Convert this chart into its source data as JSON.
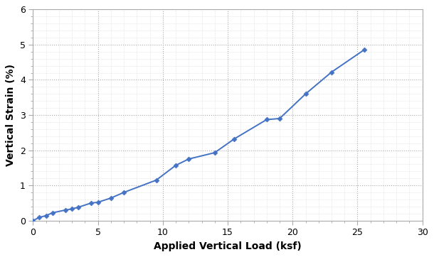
{
  "x": [
    0,
    0.5,
    1.0,
    1.5,
    2.5,
    3.0,
    3.5,
    4.5,
    5.0,
    6.0,
    7.0,
    9.5,
    11.0,
    12.0,
    14.0,
    15.5,
    18.0,
    19.0,
    21.0,
    23.0,
    25.5
  ],
  "y": [
    0.0,
    0.09,
    0.14,
    0.22,
    0.3,
    0.33,
    0.38,
    0.5,
    0.52,
    0.64,
    0.8,
    1.15,
    1.57,
    1.75,
    1.93,
    2.32,
    2.87,
    2.9,
    3.6,
    4.22,
    4.85
  ],
  "line_color": "#4472C4",
  "marker": "D",
  "marker_size": 3.5,
  "line_width": 1.4,
  "xlabel": "Applied Vertical Load (ksf)",
  "ylabel": "Vertical Strain (%)",
  "xlim": [
    0,
    30
  ],
  "ylim": [
    0,
    6
  ],
  "xticks": [
    0,
    5,
    10,
    15,
    20,
    25,
    30
  ],
  "yticks": [
    0,
    1,
    2,
    3,
    4,
    5,
    6
  ],
  "grid_color": "#aaaaaa",
  "grid_linestyle": ":",
  "grid_linewidth": 0.8,
  "background_color": "#ffffff",
  "plot_bg_color": "#ffffff",
  "xlabel_fontsize": 10,
  "ylabel_fontsize": 10,
  "tick_fontsize": 9,
  "spine_color": "#aaaaaa",
  "minor_tick_color": "#888888"
}
